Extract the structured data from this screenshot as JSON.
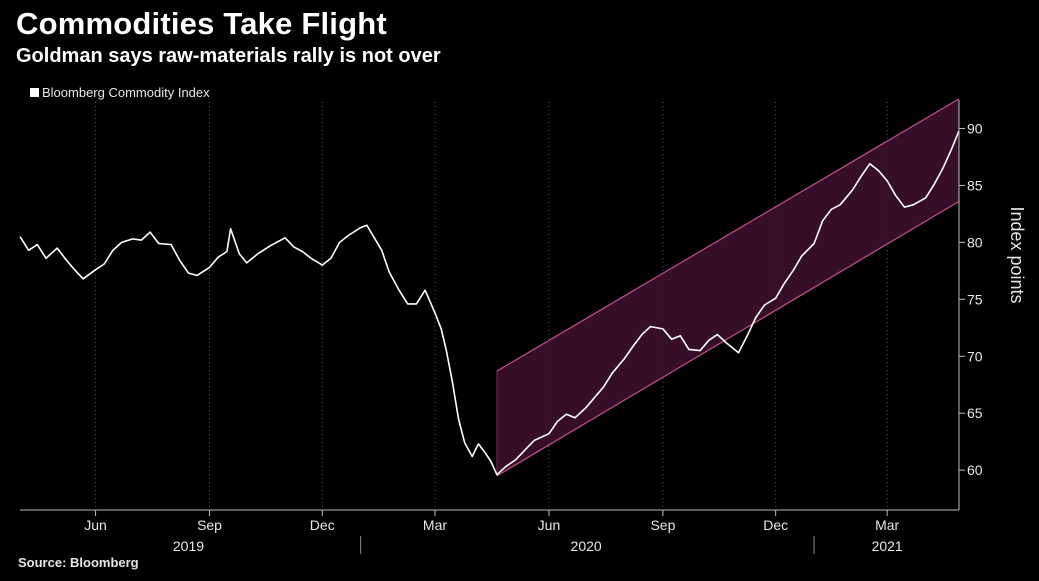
{
  "header": {
    "title": "Commodities Take Flight",
    "subtitle": "Goldman says raw-materials rally is not over"
  },
  "footer": {
    "source": "Source: Bloomberg"
  },
  "chart_data": {
    "type": "line",
    "title": "Commodities Take Flight",
    "subtitle": "Goldman says raw-materials rally is not over",
    "legend": {
      "position": "top-left",
      "entries": [
        "Bloomberg Commodity Index"
      ]
    },
    "xlabel": "",
    "ylabel": "Index points",
    "ylim": [
      56.5,
      92.5
    ],
    "yticks": [
      60,
      65,
      70,
      75,
      80,
      85,
      90
    ],
    "y_axis_side": "right",
    "grid": {
      "vertical_dotted": true,
      "horizontal": false
    },
    "x_range": [
      "2019-04-01",
      "2021-04-28"
    ],
    "x_ticks": [
      {
        "label": "Jun",
        "date": "2019-06-01"
      },
      {
        "label": "Sep",
        "date": "2019-09-01"
      },
      {
        "label": "Dec",
        "date": "2019-12-01"
      },
      {
        "label": "Mar",
        "date": "2020-03-01"
      },
      {
        "label": "Jun",
        "date": "2020-06-01"
      },
      {
        "label": "Sep",
        "date": "2020-09-01"
      },
      {
        "label": "Dec",
        "date": "2020-12-01"
      },
      {
        "label": "Mar",
        "date": "2021-03-01"
      }
    ],
    "year_labels": [
      {
        "label": "2019",
        "date": "2019-08-15"
      },
      {
        "label": "2020",
        "date": "2020-07-01"
      },
      {
        "label": "2021",
        "date": "2021-03-01"
      }
    ],
    "channel": {
      "fill": "#3a0f2a",
      "stroke": "#c2508a",
      "start": "2020-04-20",
      "end": "2021-04-28",
      "upper": [
        68.7,
        92.6
      ],
      "lower": [
        59.5,
        83.6
      ]
    },
    "series": [
      {
        "name": "Bloomberg Commodity Index",
        "color": "#ffffff",
        "points": [
          [
            "2019-04-01",
            80.5
          ],
          [
            "2019-04-08",
            79.3
          ],
          [
            "2019-04-15",
            79.8
          ],
          [
            "2019-04-22",
            78.6
          ],
          [
            "2019-05-01",
            79.5
          ],
          [
            "2019-05-08",
            78.5
          ],
          [
            "2019-05-15",
            77.6
          ],
          [
            "2019-05-22",
            76.8
          ],
          [
            "2019-06-01",
            77.6
          ],
          [
            "2019-06-08",
            78.1
          ],
          [
            "2019-06-15",
            79.3
          ],
          [
            "2019-06-22",
            80.0
          ],
          [
            "2019-07-01",
            80.3
          ],
          [
            "2019-07-08",
            80.2
          ],
          [
            "2019-07-15",
            80.9
          ],
          [
            "2019-07-22",
            79.9
          ],
          [
            "2019-08-01",
            79.8
          ],
          [
            "2019-08-08",
            78.4
          ],
          [
            "2019-08-15",
            77.3
          ],
          [
            "2019-08-22",
            77.1
          ],
          [
            "2019-09-01",
            77.8
          ],
          [
            "2019-09-08",
            78.7
          ],
          [
            "2019-09-15",
            79.2
          ],
          [
            "2019-09-18",
            81.2
          ],
          [
            "2019-09-25",
            79.0
          ],
          [
            "2019-10-01",
            78.2
          ],
          [
            "2019-10-10",
            79.0
          ],
          [
            "2019-10-20",
            79.7
          ],
          [
            "2019-11-01",
            80.4
          ],
          [
            "2019-11-08",
            79.6
          ],
          [
            "2019-11-15",
            79.2
          ],
          [
            "2019-11-22",
            78.6
          ],
          [
            "2019-12-01",
            78.0
          ],
          [
            "2019-12-08",
            78.6
          ],
          [
            "2019-12-15",
            80.0
          ],
          [
            "2019-12-22",
            80.6
          ],
          [
            "2020-01-01",
            81.3
          ],
          [
            "2020-01-06",
            81.5
          ],
          [
            "2020-01-12",
            80.4
          ],
          [
            "2020-01-18",
            79.3
          ],
          [
            "2020-01-24",
            77.4
          ],
          [
            "2020-02-01",
            75.8
          ],
          [
            "2020-02-08",
            74.6
          ],
          [
            "2020-02-15",
            74.6
          ],
          [
            "2020-02-22",
            75.8
          ],
          [
            "2020-03-01",
            73.8
          ],
          [
            "2020-03-06",
            72.4
          ],
          [
            "2020-03-10",
            70.6
          ],
          [
            "2020-03-15",
            67.8
          ],
          [
            "2020-03-20",
            64.5
          ],
          [
            "2020-03-25",
            62.4
          ],
          [
            "2020-03-31",
            61.2
          ],
          [
            "2020-04-05",
            62.3
          ],
          [
            "2020-04-10",
            61.6
          ],
          [
            "2020-04-15",
            60.8
          ],
          [
            "2020-04-20",
            59.6
          ],
          [
            "2020-04-27",
            60.3
          ],
          [
            "2020-05-05",
            60.9
          ],
          [
            "2020-05-12",
            61.7
          ],
          [
            "2020-05-20",
            62.6
          ],
          [
            "2020-06-01",
            63.2
          ],
          [
            "2020-06-08",
            64.3
          ],
          [
            "2020-06-15",
            64.9
          ],
          [
            "2020-06-22",
            64.6
          ],
          [
            "2020-07-01",
            65.5
          ],
          [
            "2020-07-08",
            66.4
          ],
          [
            "2020-07-15",
            67.3
          ],
          [
            "2020-07-22",
            68.5
          ],
          [
            "2020-08-01",
            69.8
          ],
          [
            "2020-08-08",
            70.9
          ],
          [
            "2020-08-15",
            71.9
          ],
          [
            "2020-08-22",
            72.6
          ],
          [
            "2020-09-01",
            72.4
          ],
          [
            "2020-09-08",
            71.5
          ],
          [
            "2020-09-15",
            71.8
          ],
          [
            "2020-09-22",
            70.6
          ],
          [
            "2020-10-01",
            70.5
          ],
          [
            "2020-10-08",
            71.4
          ],
          [
            "2020-10-15",
            71.9
          ],
          [
            "2020-10-22",
            71.2
          ],
          [
            "2020-11-01",
            70.3
          ],
          [
            "2020-11-08",
            71.8
          ],
          [
            "2020-11-15",
            73.4
          ],
          [
            "2020-11-22",
            74.5
          ],
          [
            "2020-12-01",
            75.1
          ],
          [
            "2020-12-08",
            76.4
          ],
          [
            "2020-12-15",
            77.5
          ],
          [
            "2020-12-22",
            78.8
          ],
          [
            "2021-01-01",
            79.9
          ],
          [
            "2021-01-08",
            81.9
          ],
          [
            "2021-01-15",
            82.9
          ],
          [
            "2021-01-22",
            83.3
          ],
          [
            "2021-02-01",
            84.6
          ],
          [
            "2021-02-08",
            85.8
          ],
          [
            "2021-02-15",
            86.9
          ],
          [
            "2021-02-22",
            86.3
          ],
          [
            "2021-03-01",
            85.4
          ],
          [
            "2021-03-08",
            84.1
          ],
          [
            "2021-03-15",
            83.1
          ],
          [
            "2021-03-22",
            83.3
          ],
          [
            "2021-04-01",
            83.9
          ],
          [
            "2021-04-08",
            85.1
          ],
          [
            "2021-04-15",
            86.5
          ],
          [
            "2021-04-22",
            88.2
          ],
          [
            "2021-04-28",
            89.8
          ]
        ]
      }
    ]
  }
}
